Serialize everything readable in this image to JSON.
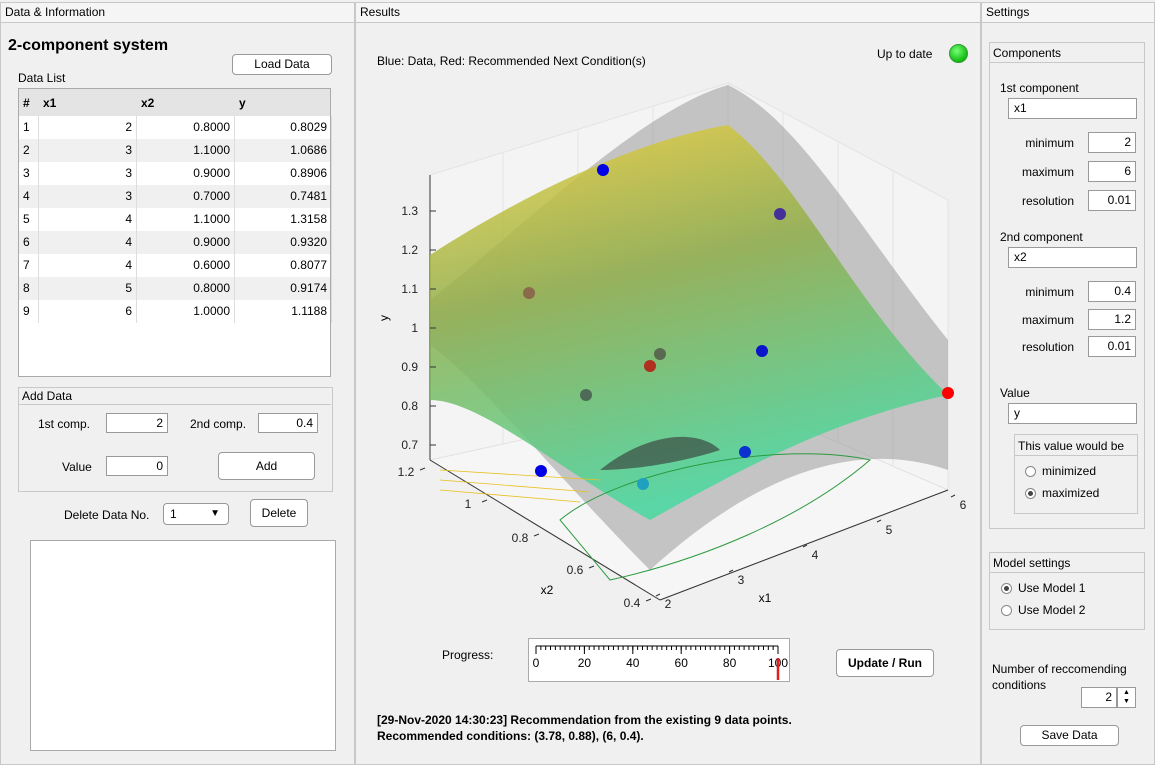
{
  "data_panel": {
    "title": "Data & Information",
    "system_title": "2-component system",
    "load_button": "Load Data",
    "data_list_label": "Data List",
    "table": {
      "columns": [
        "#",
        "x1",
        "x2",
        "y"
      ],
      "rows": [
        [
          "1",
          "2",
          "0.8000",
          "0.8029"
        ],
        [
          "2",
          "3",
          "1.1000",
          "1.0686"
        ],
        [
          "3",
          "3",
          "0.9000",
          "0.8906"
        ],
        [
          "4",
          "3",
          "0.7000",
          "0.7481"
        ],
        [
          "5",
          "4",
          "1.1000",
          "1.3158"
        ],
        [
          "6",
          "4",
          "0.9000",
          "0.9320"
        ],
        [
          "7",
          "4",
          "0.6000",
          "0.8077"
        ],
        [
          "8",
          "5",
          "0.8000",
          "0.9174"
        ],
        [
          "9",
          "6",
          "1.0000",
          "1.1188"
        ]
      ]
    },
    "add_data": {
      "title": "Add Data",
      "first_label": "1st comp.",
      "first_value": "2",
      "second_label": "2nd comp.",
      "second_value": "0.4",
      "value_label": "Value",
      "value": "0",
      "button": "Add"
    },
    "delete": {
      "label": "Delete Data No.",
      "selected": "1",
      "button": "Delete"
    }
  },
  "results_panel": {
    "title": "Results",
    "plot_caption": "Blue: Data, Red: Recommended Next Condition(s)",
    "status": "Up to date",
    "plot": {
      "y_label": "y",
      "x1_label": "x1",
      "x2_label": "x2",
      "y_ticks": [
        1.3,
        1.2,
        1.1,
        1,
        0.9,
        0.8,
        0.7
      ],
      "x1_ticks": [
        2,
        3,
        4,
        5,
        6
      ],
      "x2_ticks": [
        1.2,
        1,
        0.8,
        0.6,
        0.4
      ]
    },
    "progress": {
      "label": "Progress:",
      "ticks": [
        0,
        20,
        40,
        60,
        80,
        100
      ],
      "value": 100
    },
    "run_button": "Update / Run",
    "log": [
      "[29-Nov-2020 14:30:23] Recommendation from the existing 9 data points.",
      "Recommended conditions: (3.78, 0.88), (6, 0.4)."
    ]
  },
  "settings_panel": {
    "title": "Settings",
    "components": {
      "title": "Components",
      "first": {
        "label": "1st component",
        "name": "x1",
        "minimum_label": "minimum",
        "minimum": "2",
        "maximum_label": "maximum",
        "maximum": "6",
        "resolution_label": "resolution",
        "resolution": "0.01"
      },
      "second": {
        "label": "2nd component",
        "name": "x2",
        "minimum_label": "minimum",
        "minimum": "0.4",
        "maximum_label": "maximum",
        "maximum": "1.2",
        "resolution_label": "resolution",
        "resolution": "0.01"
      },
      "value_label": "Value",
      "value_name": "y",
      "objective": {
        "title": "This value would be",
        "options": [
          "minimized",
          "maximized"
        ],
        "selected": 1
      }
    },
    "model": {
      "title": "Model settings",
      "options": [
        "Use Model 1",
        "Use Model 2"
      ],
      "selected": 0
    },
    "recommend_label": "Number of reccomending conditions",
    "recommend_count": "2",
    "save_button": "Save Data"
  }
}
